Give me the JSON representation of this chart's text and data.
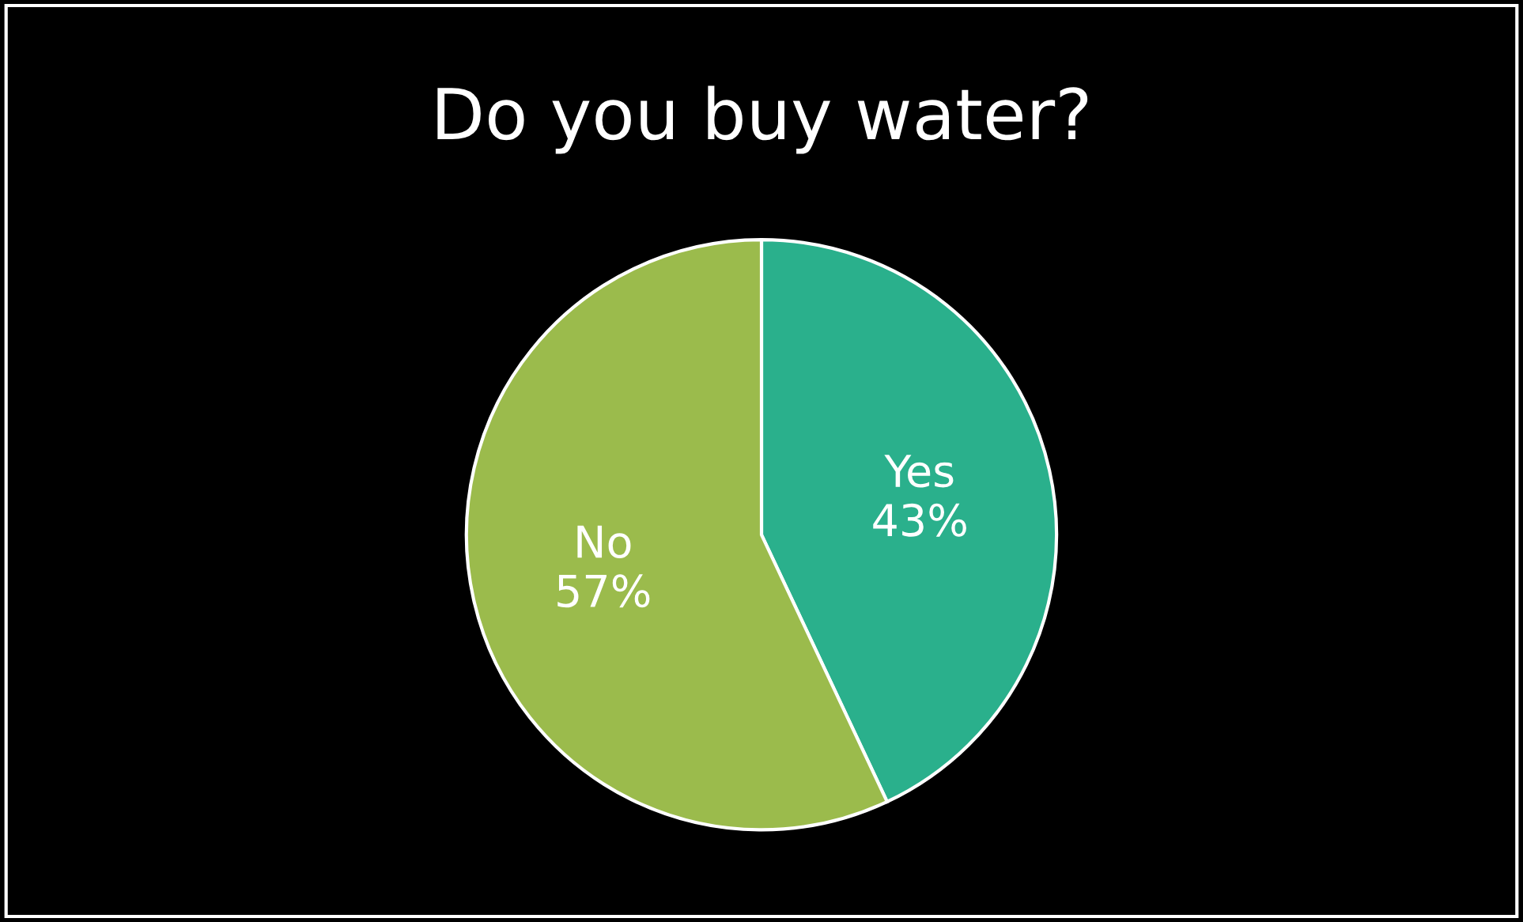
{
  "chart_data": {
    "type": "pie",
    "title": "Do you buy water?",
    "categories": [
      "Yes",
      "No"
    ],
    "values": [
      43,
      57
    ],
    "value_labels": [
      "43%",
      "57%"
    ],
    "colors": [
      "#2ab08c",
      "#9bbb4c"
    ]
  }
}
